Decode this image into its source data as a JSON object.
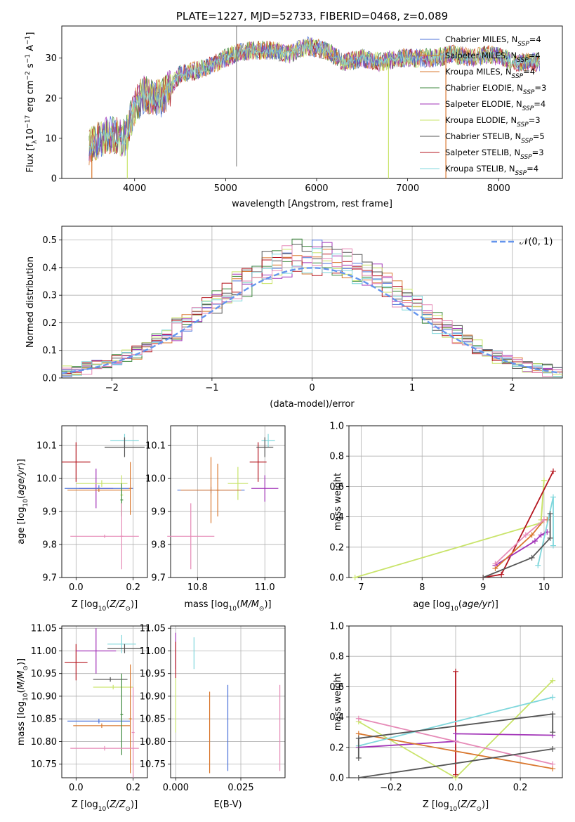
{
  "colors": {
    "blue": "#4c72d9",
    "orange": "#d9782f",
    "green": "#3f8a3f",
    "purple": "#a234b8",
    "yellowgreen": "#c9e46a",
    "gray": "#555555",
    "red": "#b5161f",
    "cyan": "#7fd7dc",
    "pink": "#e68ab7",
    "dashed": "#6495ed",
    "grid": "#b0b0b0"
  },
  "chart_data": [
    {
      "type": "line",
      "title": "PLATE=1227, MJD=52733, FIBERID=0468, z=0.089",
      "xlabel": "wavelength [Angstrom, rest frame]",
      "ylabel": "Flux [fλ10⁻¹⁷ erg cm⁻² s⁻¹ A⁻¹]",
      "xlim": [
        3200,
        8700
      ],
      "ylim": [
        0,
        38
      ],
      "xticks": [
        4000,
        5000,
        6000,
        7000,
        8000
      ],
      "yticks": [
        0,
        10,
        20,
        30
      ],
      "grid": false,
      "legend_position": "top-right",
      "series": [
        {
          "name": "Chabrier MILES, N_SSP=4",
          "color_key": "blue"
        },
        {
          "name": "Salpeter MILES, N_SSP=4",
          "color_key": "orange"
        },
        {
          "name": "Kroupa MILES, N_SSP=4",
          "color_key": "orange"
        },
        {
          "name": "Chabrier ELODIE, N_SSP=3",
          "color_key": "green"
        },
        {
          "name": "Salpeter ELODIE, N_SSP=4",
          "color_key": "purple"
        },
        {
          "name": "Kroupa ELODIE, N_SSP=3",
          "color_key": "yellowgreen"
        },
        {
          "name": "Chabrier STELIB, N_SSP=5",
          "color_key": "gray"
        },
        {
          "name": "Salpeter STELIB, N_SSP=3",
          "color_key": "red"
        },
        {
          "name": "Kroupa STELIB, N_SSP=4",
          "color_key": "cyan"
        }
      ],
      "spectrum_envelope": {
        "x": [
          3500,
          3700,
          3900,
          4000,
          4100,
          4200,
          4300,
          4500,
          4700,
          4900,
          5100,
          5300,
          5500,
          5700,
          5900,
          6100,
          6300,
          6500,
          6700,
          6900,
          7100,
          7300,
          7500,
          7700,
          7900,
          8200,
          8450
        ],
        "y": [
          8,
          11,
          10,
          18,
          21,
          20,
          20,
          26,
          27,
          29,
          31,
          32,
          32,
          31,
          33,
          32,
          29,
          30,
          29,
          30,
          30,
          30,
          31,
          30,
          31,
          29,
          29
        ]
      }
    },
    {
      "type": "line",
      "xlabel": "(data-model)/error",
      "ylabel": "Normed distribution",
      "xlim": [
        -2.5,
        2.5
      ],
      "ylim": [
        0,
        0.55
      ],
      "xticks": [
        -2,
        -1,
        0,
        1,
        2
      ],
      "yticks": [
        0.0,
        0.1,
        0.2,
        0.3,
        0.4,
        0.5
      ],
      "grid": true,
      "legend_position": "top-right",
      "legend": "𝒩(0, 1)",
      "gaussian": {
        "mean": 0,
        "sigma": 1
      }
    },
    {
      "type": "scatter",
      "xlabel": "Z [log10(Z/Z⊙)]",
      "ylabel": "age  [log10(age/yr)]",
      "xlim": [
        -0.05,
        0.25
      ],
      "ylim": [
        9.7,
        10.16
      ],
      "xticks": [
        0.0,
        0.2
      ],
      "yticks": [
        9.7,
        9.8,
        9.9,
        10.0,
        10.1
      ],
      "grid": true,
      "points": [
        {
          "x": 0.0,
          "y": 10.05,
          "xerr": 0.05,
          "yerr": 0.06,
          "color_key": "red"
        },
        {
          "x": 0.17,
          "y": 10.115,
          "xerr": 0.05,
          "yerr": 0.02,
          "color_key": "cyan"
        },
        {
          "x": 0.17,
          "y": 10.095,
          "xerr": 0.07,
          "yerr": 0.03,
          "color_key": "gray"
        },
        {
          "x": 0.07,
          "y": 9.97,
          "xerr": 0.06,
          "yerr": 0.06,
          "color_key": "purple"
        },
        {
          "x": 0.09,
          "y": 9.985,
          "xerr": 0.09,
          "yerr": 0.01,
          "color_key": "yellowgreen"
        },
        {
          "x": 0.08,
          "y": 9.97,
          "xerr": 0.12,
          "yerr": 0.01,
          "color_key": "blue"
        },
        {
          "x": 0.08,
          "y": 9.965,
          "xerr": 0.11,
          "yerr": 0.005,
          "color_key": "orange"
        },
        {
          "x": 0.19,
          "y": 9.97,
          "xerr": 0.005,
          "yerr": 0.08,
          "color_key": "orange"
        },
        {
          "x": 0.16,
          "y": 9.95,
          "xerr": 0.005,
          "yerr": 0.06,
          "color_key": "yellowgreen"
        },
        {
          "x": 0.16,
          "y": 9.935,
          "xerr": 0.005,
          "yerr": 0.05,
          "color_key": "green"
        },
        {
          "x": 0.1,
          "y": 9.825,
          "xerr": 0.12,
          "yerr": 0.005,
          "color_key": "pink"
        },
        {
          "x": 0.16,
          "y": 9.825,
          "xerr": 0.005,
          "yerr": 0.1,
          "color_key": "pink"
        }
      ]
    },
    {
      "type": "scatter",
      "xlabel": "mass [log10(M/M⊙)]",
      "ylabel": "",
      "xlim": [
        10.72,
        11.06
      ],
      "ylim": [
        9.7,
        10.16
      ],
      "xticks": [
        10.8,
        11.0
      ],
      "yticks": [
        9.7,
        9.8,
        9.9,
        10.0,
        10.1
      ],
      "grid": true,
      "points": [
        {
          "x": 10.98,
          "y": 10.05,
          "xerr": 0.025,
          "yerr": 0.06,
          "color_key": "red"
        },
        {
          "x": 11.01,
          "y": 10.115,
          "xerr": 0.02,
          "yerr": 0.02,
          "color_key": "cyan"
        },
        {
          "x": 11.0,
          "y": 10.095,
          "xerr": 0.025,
          "yerr": 0.03,
          "color_key": "gray"
        },
        {
          "x": 11.0,
          "y": 9.97,
          "xerr": 0.04,
          "yerr": 0.04,
          "color_key": "purple"
        },
        {
          "x": 10.92,
          "y": 9.985,
          "xerr": 0.03,
          "yerr": 0.05,
          "color_key": "yellowgreen"
        },
        {
          "x": 10.84,
          "y": 9.965,
          "xerr": 0.1,
          "yerr": 0.01,
          "color_key": "blue"
        },
        {
          "x": 10.84,
          "y": 9.965,
          "xerr": 0.09,
          "yerr": 0.1,
          "color_key": "orange"
        },
        {
          "x": 10.86,
          "y": 9.965,
          "xerr": 0.005,
          "yerr": 0.08,
          "color_key": "orange"
        },
        {
          "x": 10.78,
          "y": 9.825,
          "xerr": 0.07,
          "yerr": 0.1,
          "color_key": "pink"
        }
      ]
    },
    {
      "type": "line",
      "xlabel": "age  [log10(age/yr)]",
      "ylabel": "mass weight",
      "xlim": [
        6.8,
        10.3
      ],
      "ylim": [
        0.0,
        1.0
      ],
      "xticks": [
        7,
        8,
        9,
        10
      ],
      "yticks": [
        0.0,
        0.2,
        0.4,
        0.6,
        0.8,
        1.0
      ],
      "grid": true,
      "series": [
        {
          "color_key": "yellowgreen",
          "x": [
            6.9,
            9.95,
            10.0,
            9.95
          ],
          "y": [
            0.0,
            0.36,
            0.64,
            0.38
          ]
        },
        {
          "color_key": "red",
          "x": [
            9.0,
            9.3,
            10.15
          ],
          "y": [
            0.0,
            0.02,
            0.7
          ]
        },
        {
          "color_key": "purple",
          "x": [
            9.2,
            9.85,
            9.95,
            10.05
          ],
          "y": [
            0.08,
            0.24,
            0.28,
            0.3
          ]
        },
        {
          "color_key": "orange",
          "x": [
            9.2,
            9.8,
            10.0,
            10.05
          ],
          "y": [
            0.06,
            0.28,
            0.38,
            0.38
          ]
        },
        {
          "color_key": "pink",
          "x": [
            9.2,
            9.7,
            10.0
          ],
          "y": [
            0.09,
            0.28,
            0.38
          ]
        },
        {
          "color_key": "cyan",
          "x": [
            9.9,
            10.15,
            10.15
          ],
          "y": [
            0.08,
            0.53,
            0.21
          ]
        },
        {
          "color_key": "gray",
          "x": [
            9.0,
            9.8,
            10.1,
            10.1
          ],
          "y": [
            0.0,
            0.13,
            0.26,
            0.42
          ]
        }
      ]
    },
    {
      "type": "scatter",
      "xlabel": "Z [log10(Z/Z⊙)]",
      "ylabel": "mass [log10(M/M⊙)]",
      "xlim": [
        -0.05,
        0.25
      ],
      "ylim": [
        10.72,
        11.055
      ],
      "xticks": [
        0.0,
        0.2
      ],
      "yticks": [
        10.75,
        10.8,
        10.85,
        10.9,
        10.95,
        11.0,
        11.05
      ],
      "grid": true,
      "points": [
        {
          "x": 0.0,
          "y": 10.975,
          "xerr": 0.04,
          "yerr": 0.04,
          "color_key": "red"
        },
        {
          "x": 0.16,
          "y": 11.015,
          "xerr": 0.05,
          "yerr": 0.02,
          "color_key": "cyan"
        },
        {
          "x": 0.17,
          "y": 11.005,
          "xerr": 0.06,
          "yerr": 0.01,
          "color_key": "gray"
        },
        {
          "x": 0.07,
          "y": 11.0,
          "xerr": 0.07,
          "yerr": 0.05,
          "color_key": "purple"
        },
        {
          "x": 0.12,
          "y": 10.937,
          "xerr": 0.06,
          "yerr": 0.005,
          "color_key": "gray"
        },
        {
          "x": 0.13,
          "y": 10.92,
          "xerr": 0.07,
          "yerr": 0.005,
          "color_key": "yellowgreen"
        },
        {
          "x": 0.08,
          "y": 10.845,
          "xerr": 0.11,
          "yerr": 0.005,
          "color_key": "blue"
        },
        {
          "x": 0.09,
          "y": 10.835,
          "xerr": 0.1,
          "yerr": 0.005,
          "color_key": "orange"
        },
        {
          "x": 0.19,
          "y": 10.85,
          "xerr": 0.005,
          "yerr": 0.12,
          "color_key": "orange"
        },
        {
          "x": 0.16,
          "y": 10.86,
          "xerr": 0.005,
          "yerr": 0.09,
          "color_key": "green"
        },
        {
          "x": 0.1,
          "y": 10.785,
          "xerr": 0.12,
          "yerr": 0.005,
          "color_key": "pink"
        },
        {
          "x": 0.2,
          "y": 10.82,
          "xerr": 0.005,
          "yerr": 0.1,
          "color_key": "pink"
        }
      ]
    },
    {
      "type": "scatter",
      "xlabel": "E(B-V)",
      "ylabel": "",
      "xlim": [
        -0.002,
        0.042
      ],
      "ylim": [
        10.72,
        11.055
      ],
      "xticks": [
        0.0,
        0.025
      ],
      "xticklabels": [
        "0.000",
        "0.025"
      ],
      "yticks": [
        10.75,
        10.8,
        10.85,
        10.9,
        10.95,
        11.0,
        11.05
      ],
      "grid": true,
      "points": [
        {
          "x": 0.0,
          "y": 11.0,
          "yerr": 0.04,
          "color_key": "purple"
        },
        {
          "x": 0.0,
          "y": 10.98,
          "yerr": 0.04,
          "color_key": "red"
        },
        {
          "x": 0.007,
          "y": 10.995,
          "yerr": 0.035,
          "color_key": "cyan"
        },
        {
          "x": 0.0,
          "y": 10.88,
          "yerr": 0.06,
          "color_key": "yellowgreen"
        },
        {
          "x": 0.013,
          "y": 10.82,
          "yerr": 0.09,
          "color_key": "orange"
        },
        {
          "x": 0.02,
          "y": 10.83,
          "yerr": 0.095,
          "color_key": "blue"
        },
        {
          "x": 0.04,
          "y": 10.83,
          "yerr": 0.095,
          "color_key": "pink"
        }
      ]
    },
    {
      "type": "line",
      "xlabel": "Z [log10(Z/Z⊙)]",
      "ylabel": "mass weight",
      "xlim": [
        -0.33,
        0.33
      ],
      "ylim": [
        0.0,
        1.0
      ],
      "xticks": [
        -0.2,
        0.0,
        0.2
      ],
      "yticks": [
        0.0,
        0.2,
        0.4,
        0.6,
        0.8,
        1.0
      ],
      "grid": true,
      "series": [
        {
          "color_key": "yellowgreen",
          "x": [
            -0.3,
            0.0,
            0.3
          ],
          "y": [
            0.37,
            0.0,
            0.64
          ]
        },
        {
          "color_key": "red",
          "x": [
            0.0,
            0.0
          ],
          "y": [
            0.02,
            0.7
          ]
        },
        {
          "color_key": "purple",
          "x": [
            -0.3,
            0.0,
            0.0,
            0.3
          ],
          "y": [
            0.2,
            0.24,
            0.29,
            0.28
          ]
        },
        {
          "color_key": "orange",
          "x": [
            -0.3,
            0.3
          ],
          "y": [
            0.29,
            0.06
          ]
        },
        {
          "color_key": "pink",
          "x": [
            -0.3,
            0.3
          ],
          "y": [
            0.39,
            0.09
          ]
        },
        {
          "color_key": "cyan",
          "x": [
            -0.3,
            0.3
          ],
          "y": [
            0.21,
            0.53
          ]
        },
        {
          "color_key": "gray",
          "x": [
            -0.3,
            0.3
          ],
          "y": [
            0.0,
            0.19
          ]
        },
        {
          "color_key": "gray",
          "x": [
            -0.3,
            -0.3,
            0.3,
            0.3
          ],
          "y": [
            0.13,
            0.26,
            0.42,
            0.3
          ]
        }
      ]
    }
  ]
}
